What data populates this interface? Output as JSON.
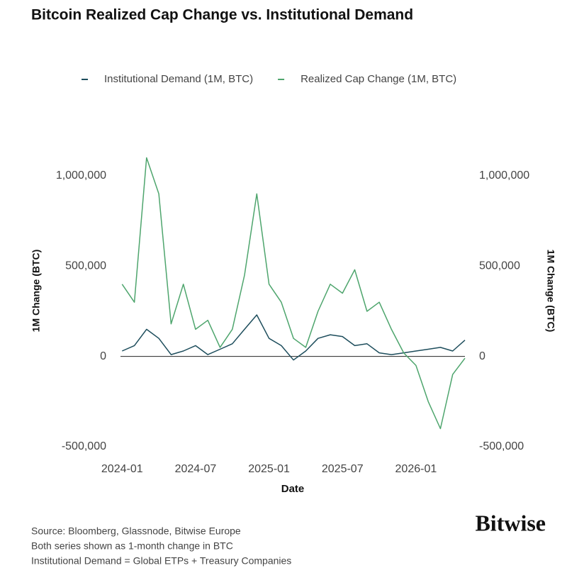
{
  "chart_data": {
    "type": "line",
    "title": "Bitcoin Realized Cap Change vs. Institutional Demand",
    "x_label": "Date",
    "y_label": "1M Change (BTC)",
    "y2_label": "1M Change (BTC)",
    "x": [
      "2024-01",
      "2024-02",
      "2024-03",
      "2024-04",
      "2024-05",
      "2024-06",
      "2024-07",
      "2024-08",
      "2024-09",
      "2024-10",
      "2024-11",
      "2024-12",
      "2025-01",
      "2025-02",
      "2025-03",
      "2025-04",
      "2025-05",
      "2025-06",
      "2025-07",
      "2025-08",
      "2025-09",
      "2025-10",
      "2025-11",
      "2025-12",
      "2026-01",
      "2026-02",
      "2026-03",
      "2026-04",
      "2026-05"
    ],
    "xlim": [
      "2023-12",
      "2026-05"
    ],
    "xticks": [
      "2024-01",
      "2024-07",
      "2025-01",
      "2025-07",
      "2026-01"
    ],
    "ylim": [
      -500000,
      1200000
    ],
    "yticks": [
      {
        "value": -500000,
        "label": "-500,000"
      },
      0,
      {
        "value": 500000,
        "label": "500,000"
      },
      {
        "value": 1000000,
        "label": "1,000,000"
      }
    ],
    "y2lim": [
      -500000,
      1200000
    ],
    "y2ticks": [
      {
        "value": -500000,
        "label": "-500,000"
      },
      0,
      {
        "value": 500000,
        "label": "500,000"
      },
      {
        "value": 1000000,
        "label": "1,000,000"
      }
    ],
    "grid": false,
    "legend": "top",
    "series": [
      {
        "name": "Institutional Demand (1M, BTC)",
        "color": "#1d4d5c",
        "values": [
          30000,
          60000,
          150000,
          100000,
          10000,
          30000,
          60000,
          10000,
          40000,
          70000,
          150000,
          230000,
          100000,
          60000,
          -20000,
          30000,
          100000,
          120000,
          110000,
          60000,
          70000,
          20000,
          10000,
          20000,
          30000,
          40000,
          50000,
          30000,
          90000
        ]
      },
      {
        "name": "Realized Cap Change (1M, BTC)",
        "color": "#4ea56d",
        "values": [
          400000,
          300000,
          1100000,
          900000,
          180000,
          400000,
          150000,
          200000,
          50000,
          150000,
          450000,
          900000,
          400000,
          300000,
          100000,
          50000,
          250000,
          400000,
          350000,
          480000,
          250000,
          300000,
          150000,
          20000,
          -50000,
          -250000,
          -400000,
          -100000,
          -10000
        ]
      }
    ],
    "source_lines": [
      "Source: Bloomberg, Glassnode, Bitwise Europe",
      "Both series shown as 1-month change in BTC",
      "Institutional Demand = Global ETPs + Treasury Companies"
    ],
    "logo": "Bitwise"
  }
}
